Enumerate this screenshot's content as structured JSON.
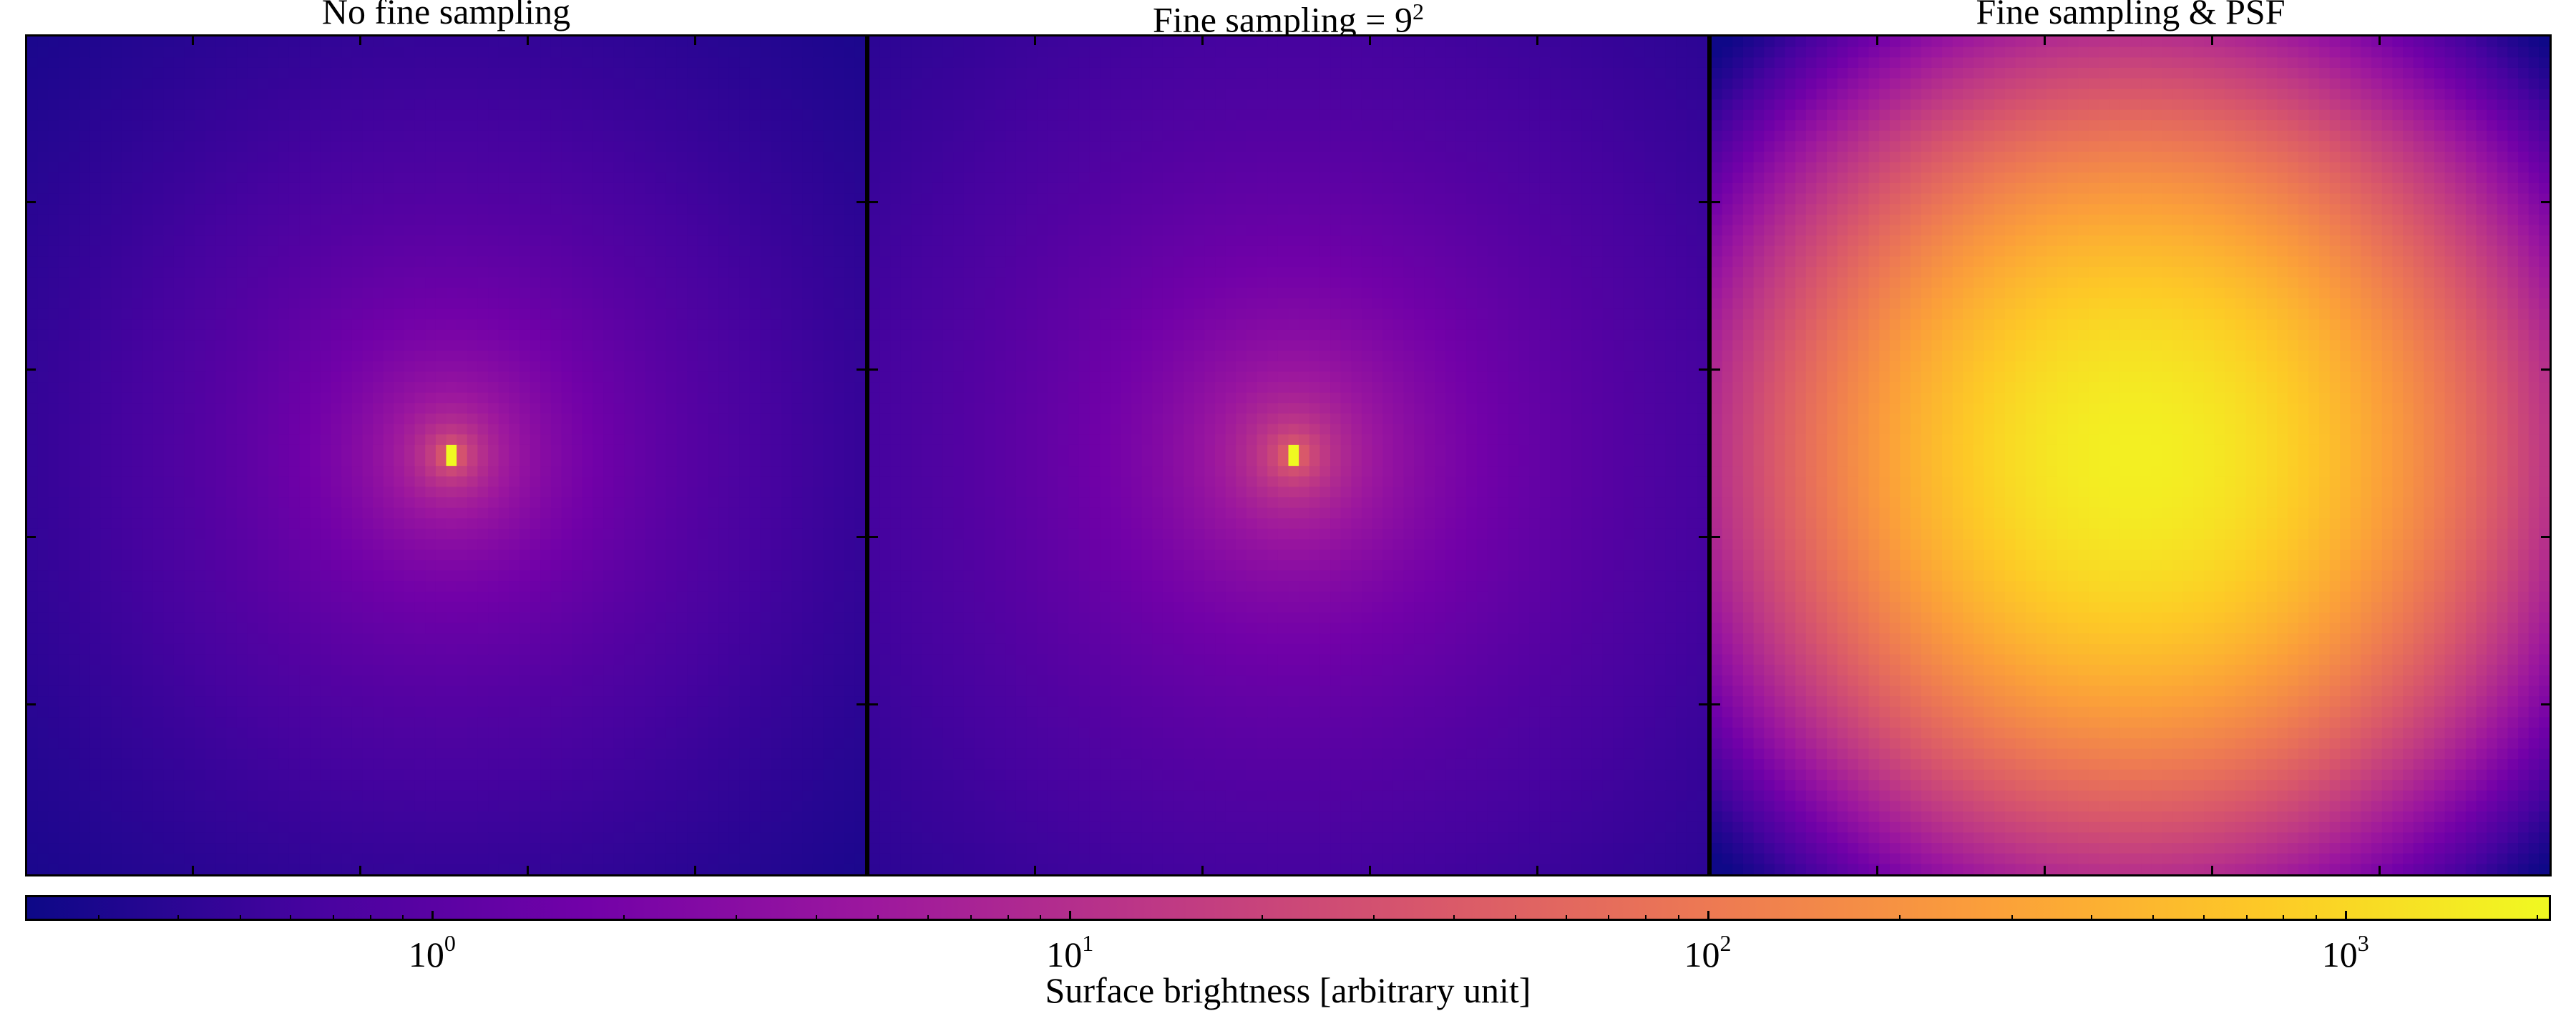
{
  "panels": [
    {
      "title": "No fine sampling",
      "profile": "sharp"
    },
    {
      "title": "Fine sampling = 9",
      "title_sup": "2",
      "profile": "fine"
    },
    {
      "title": "Fine sampling & PSF",
      "profile": "psf"
    }
  ],
  "chart_data": {
    "type": "heatmap",
    "colormap": "plasma",
    "colormap_colors": [
      "#0d0887",
      "#46039f",
      "#7201a8",
      "#9c179e",
      "#bd3786",
      "#d8576b",
      "#ed7953",
      "#fb9f3a",
      "#fdca26",
      "#f0f921"
    ],
    "scale": "log",
    "colorbar_range": [
      0.23,
      2100
    ],
    "colorbar_ticks": [
      {
        "base": "10",
        "exp": "0",
        "value": 1
      },
      {
        "base": "10",
        "exp": "1",
        "value": 10
      },
      {
        "base": "10",
        "exp": "2",
        "value": 100
      },
      {
        "base": "10",
        "exp": "3",
        "value": 1000
      }
    ],
    "colorbar_label": "Surface brightness [arbitrary unit]",
    "colorbar_orientation": "horizontal",
    "grid": false,
    "panel_peaks": [
      2100,
      2100,
      1700
    ]
  }
}
